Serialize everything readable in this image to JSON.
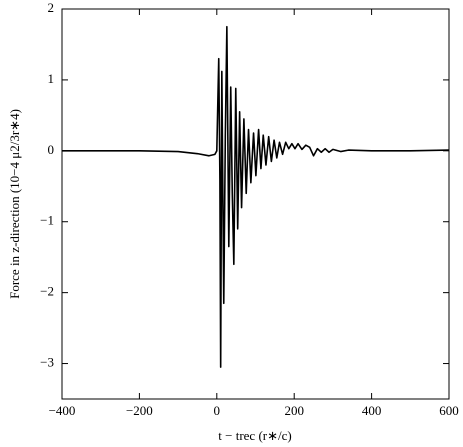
{
  "chart_data": {
    "type": "line",
    "x_label": "t − trec (r∗/c)",
    "y_label": "Force in z-direction (10−4 μ2/3r∗4)",
    "x": [
      -400,
      -200,
      -100,
      -50,
      -20,
      -5,
      0,
      5,
      8,
      10,
      13,
      18,
      22,
      26,
      31,
      36,
      40,
      44,
      49,
      54,
      59,
      64,
      70,
      76,
      82,
      88,
      95,
      101,
      108,
      114,
      120,
      127,
      134,
      141,
      148,
      155,
      162,
      170,
      178,
      186,
      194,
      202,
      210,
      220,
      230,
      240,
      250,
      260,
      270,
      280,
      290,
      300,
      320,
      340,
      400,
      500,
      600
    ],
    "series": [
      {
        "name": "force",
        "color": "#000000",
        "values": [
          0,
          0,
          -0.01,
          -0.04,
          -0.07,
          -0.05,
          0,
          1.3,
          -0.4,
          -3.05,
          1.12,
          -2.15,
          0.2,
          1.75,
          -1.35,
          0.9,
          -0.6,
          -1.6,
          0.88,
          -1.1,
          0.55,
          -0.8,
          0.45,
          -0.6,
          0.3,
          -0.45,
          0.25,
          -0.35,
          0.3,
          -0.25,
          0.22,
          -0.2,
          0.2,
          -0.15,
          0.15,
          -0.1,
          0.12,
          -0.05,
          0.12,
          0.03,
          0.1,
          0.03,
          0.1,
          0.02,
          0.08,
          0.05,
          -0.07,
          0.03,
          -0.02,
          0.03,
          -0.02,
          0.02,
          -0.01,
          0.01,
          0,
          0,
          0.01
        ]
      }
    ],
    "xlim": [
      -400,
      600
    ],
    "xticks": [
      {
        "value": -400,
        "label": "−400"
      },
      {
        "value": -200,
        "label": "−200"
      },
      0,
      200,
      400,
      600
    ],
    "ylim": [
      -3.5,
      2
    ],
    "yticks": [
      {
        "value": -3,
        "label": "−3"
      },
      {
        "value": -2,
        "label": "−2"
      },
      {
        "value": -1,
        "label": "−1"
      },
      0,
      1,
      2
    ],
    "grid": false
  }
}
